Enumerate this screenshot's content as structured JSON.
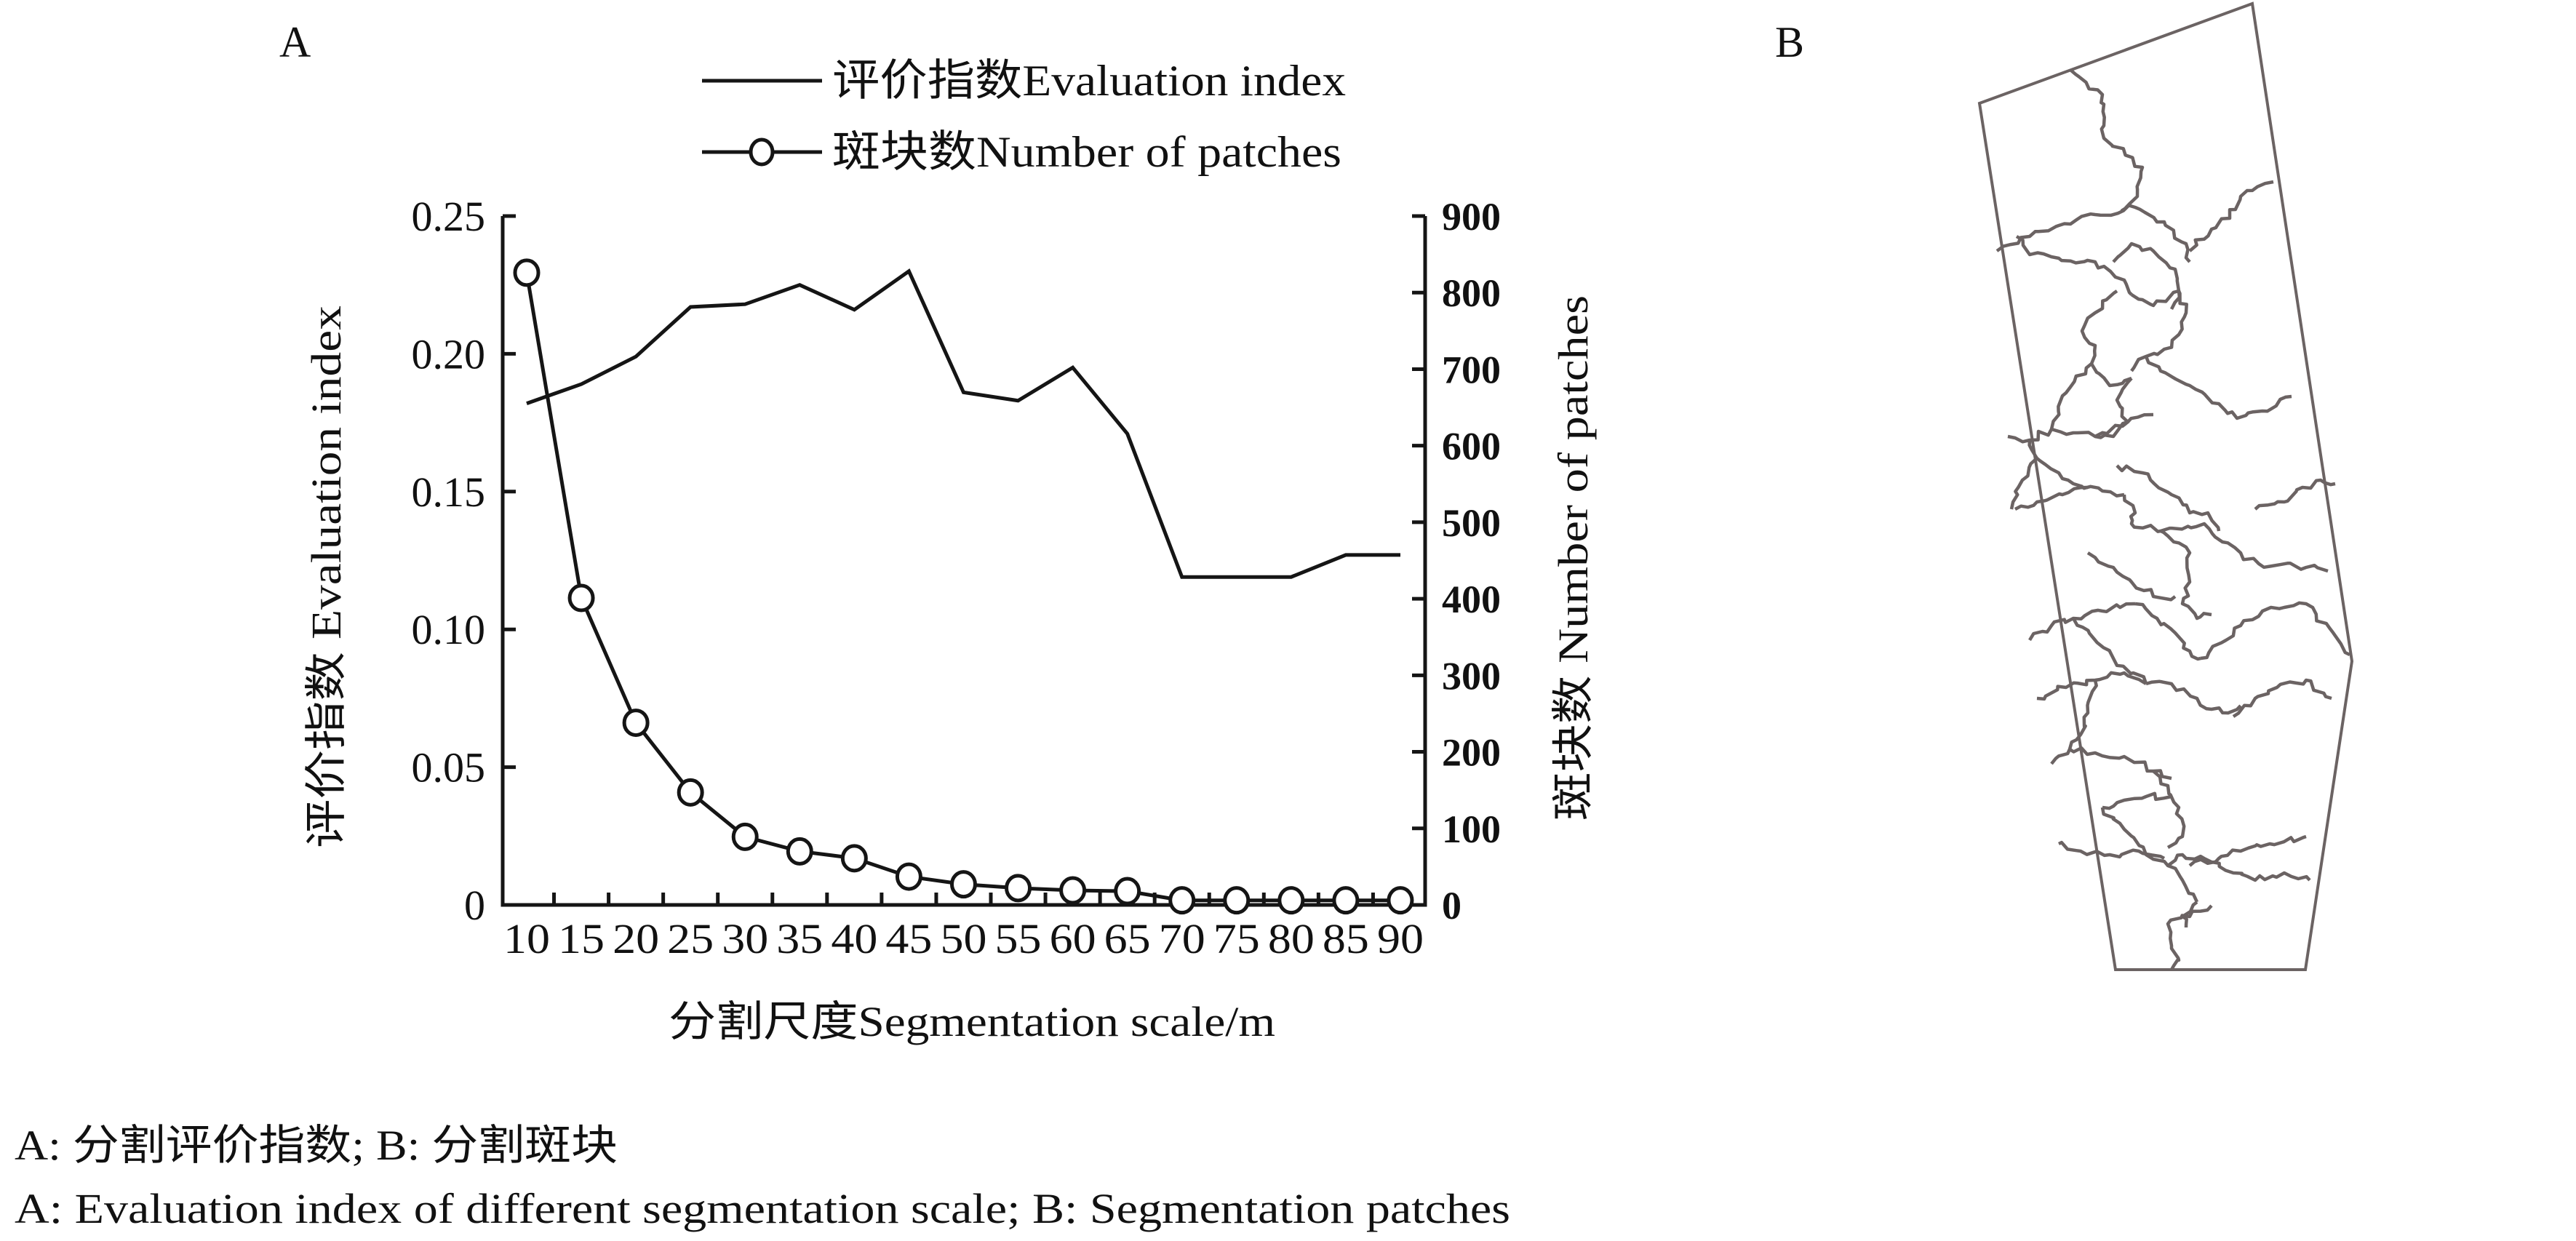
{
  "panels": {
    "a_label": "A",
    "b_label": "B"
  },
  "legend": {
    "items": [
      {
        "label": "评价指数Evaluation index",
        "style": "line"
      },
      {
        "label": "斑块数Number of patches",
        "style": "line-circle-marker"
      }
    ]
  },
  "chart_data": {
    "type": "line",
    "title": "",
    "xlabel": "分割尺度Segmentation scale/m",
    "ylabel_left": "评价指数  Evaluation index",
    "ylabel_right": "斑块数  Number of patches",
    "categories": [
      "10",
      "15",
      "20",
      "25",
      "30",
      "35",
      "40",
      "45",
      "50",
      "55",
      "60",
      "65",
      "70",
      "75",
      "80",
      "85",
      "90"
    ],
    "x": [
      10,
      15,
      20,
      25,
      30,
      35,
      40,
      45,
      50,
      55,
      60,
      65,
      70,
      75,
      80,
      85,
      90
    ],
    "ylim_left": [
      0,
      0.25
    ],
    "ylim_right": [
      0,
      900
    ],
    "yticks_left": [
      "0",
      "0.05",
      "0.10",
      "0.15",
      "0.20",
      "0.25"
    ],
    "yticks_left_values": [
      0,
      0.05,
      0.1,
      0.15,
      0.2,
      0.25
    ],
    "yticks_right": [
      "0",
      "100",
      "200",
      "300",
      "400",
      "500",
      "600",
      "700",
      "800",
      "900"
    ],
    "yticks_right_values": [
      0,
      100,
      200,
      300,
      400,
      500,
      600,
      700,
      800,
      900
    ],
    "grid": false,
    "legend_position": "top-center",
    "series": [
      {
        "name": "评价指数Evaluation index",
        "axis": "left",
        "marker": "none",
        "values": [
          0.182,
          0.189,
          0.199,
          0.217,
          0.218,
          0.225,
          0.216,
          0.23,
          0.186,
          0.183,
          0.195,
          0.171,
          0.119,
          0.119,
          0.119,
          0.127,
          0.127
        ]
      },
      {
        "name": "斑块数Number of patches",
        "axis": "right",
        "marker": "open-circle",
        "values": [
          826,
          401,
          238,
          147,
          89,
          70,
          61,
          37,
          27,
          22,
          19,
          18,
          6,
          6,
          6,
          6,
          6
        ]
      }
    ]
  },
  "captions": {
    "line_zh": "A: 分割评价指数; B: 分割斑块",
    "line_en": "A: Evaluation index of different segmentation scale; B: Segmentation patches"
  },
  "colors": {
    "ink": "#151515",
    "patch_boundary": "#6b6363",
    "background": "#ffffff"
  }
}
